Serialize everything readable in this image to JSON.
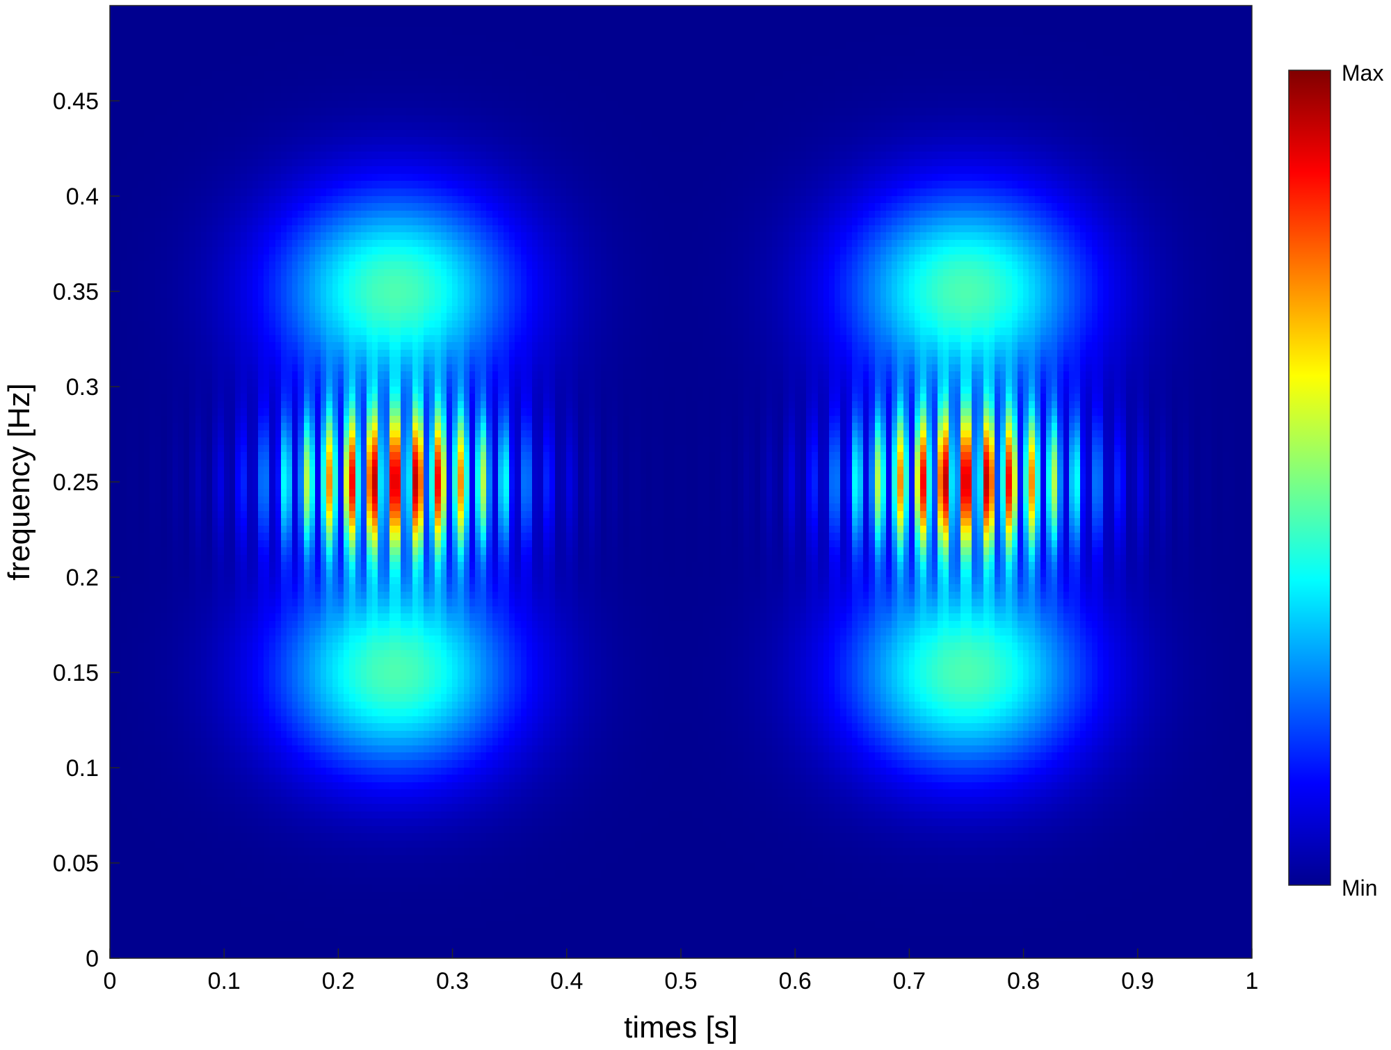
{
  "chart_data": {
    "type": "heatmap",
    "title": "",
    "xlabel": "times [s]",
    "ylabel": "frequency [Hz]",
    "xlim": [
      0,
      1
    ],
    "ylim": [
      0,
      0.5
    ],
    "x_ticks": [
      0,
      0.1,
      0.2,
      0.3,
      0.4,
      0.5,
      0.6,
      0.7,
      0.8,
      0.9,
      1
    ],
    "x_tick_labels": [
      "0",
      "0.1",
      "0.2",
      "0.3",
      "0.4",
      "0.5",
      "0.6",
      "0.7",
      "0.8",
      "0.9",
      "1"
    ],
    "y_ticks": [
      0,
      0.05,
      0.1,
      0.15,
      0.2,
      0.25,
      0.3,
      0.35,
      0.4,
      0.45
    ],
    "y_tick_labels": [
      "0",
      "0.05",
      "0.1",
      "0.15",
      "0.2",
      "0.25",
      "0.3",
      "0.35",
      "0.4",
      "0.45"
    ],
    "colormap": "jet",
    "colorbar": {
      "max_label": "Max",
      "min_label": "Min",
      "location": "right"
    },
    "grid": false,
    "blobs": [
      {
        "t": 0.25,
        "f": 0.35,
        "intensity": 0.45,
        "t_width": 0.075,
        "f_width": 0.038,
        "oscillating": false
      },
      {
        "t": 0.25,
        "f": 0.25,
        "intensity": 1.0,
        "t_width": 0.07,
        "f_width": 0.028,
        "oscillating": true,
        "stripe_freq_per_s": 52
      },
      {
        "t": 0.25,
        "f": 0.15,
        "intensity": 0.45,
        "t_width": 0.075,
        "f_width": 0.038,
        "oscillating": false
      },
      {
        "t": 0.75,
        "f": 0.35,
        "intensity": 0.45,
        "t_width": 0.075,
        "f_width": 0.038,
        "oscillating": false
      },
      {
        "t": 0.75,
        "f": 0.25,
        "intensity": 1.0,
        "t_width": 0.07,
        "f_width": 0.028,
        "oscillating": true,
        "stripe_freq_per_s": 52
      },
      {
        "t": 0.75,
        "f": 0.15,
        "intensity": 0.45,
        "t_width": 0.075,
        "f_width": 0.038,
        "oscillating": false
      }
    ]
  }
}
